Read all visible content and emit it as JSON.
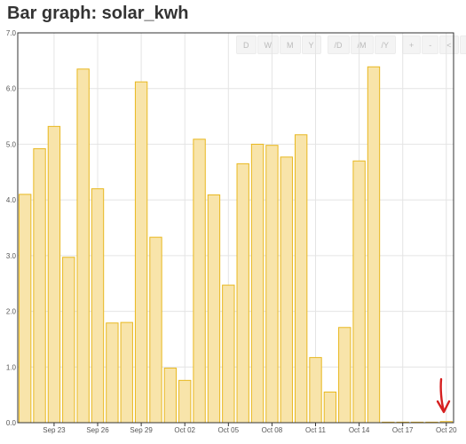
{
  "page": {
    "title": "Bar graph: solar_kwh"
  },
  "toolbar": {
    "buttons": [
      "D",
      "W",
      "M",
      "Y",
      "/D",
      "/M",
      "/Y",
      "+",
      "-",
      "<",
      ">"
    ]
  },
  "annotation": {
    "arrow_color": "#d62020",
    "points_to": "last bar (Oct 20)"
  },
  "colors": {
    "bar_fill": "#f8e4aa",
    "bar_stroke": "#e8b820",
    "grid": "#e4e4e4",
    "axis": "#333333"
  },
  "chart_data": {
    "type": "bar",
    "title": "Bar graph: solar_kwh",
    "xlabel": "",
    "ylabel": "",
    "ylim": [
      0,
      7
    ],
    "yticks": [
      "0.0",
      "1.0",
      "2.0",
      "3.0",
      "4.0",
      "5.0",
      "6.0",
      "7.0"
    ],
    "grid": true,
    "x_tick_labels": [
      {
        "date": "Sep 23",
        "label": "Sep 23"
      },
      {
        "date": "Sep 26",
        "label": "Sep 26"
      },
      {
        "date": "Sep 29",
        "label": "Sep 29"
      },
      {
        "date": "Oct 02",
        "label": "Oct 02"
      },
      {
        "date": "Oct 05",
        "label": "Oct 05"
      },
      {
        "date": "Oct 08",
        "label": "Oct 08"
      },
      {
        "date": "Oct 11",
        "label": "Oct 11"
      },
      {
        "date": "Oct 14",
        "label": "Oct 14"
      },
      {
        "date": "Oct 17",
        "label": "Oct 17"
      },
      {
        "date": "Oct 20",
        "label": "Oct 20"
      }
    ],
    "categories": [
      "Sep 21",
      "Sep 22",
      "Sep 23",
      "Sep 24",
      "Sep 25",
      "Sep 26",
      "Sep 27",
      "Sep 28",
      "Sep 29",
      "Sep 30",
      "Oct 01",
      "Oct 02",
      "Oct 03",
      "Oct 04",
      "Oct 05",
      "Oct 06",
      "Oct 07",
      "Oct 08",
      "Oct 09",
      "Oct 10",
      "Oct 11",
      "Oct 12",
      "Oct 13",
      "Oct 14",
      "Oct 15",
      "Oct 16",
      "Oct 17",
      "Oct 18",
      "Oct 19",
      "Oct 20"
    ],
    "values": [
      4.1,
      4.92,
      5.32,
      2.97,
      6.35,
      4.2,
      1.79,
      1.8,
      6.12,
      3.33,
      0.98,
      0.76,
      5.09,
      4.09,
      2.47,
      4.65,
      5.0,
      4.98,
      4.77,
      5.17,
      1.17,
      0.55,
      1.71,
      4.7,
      6.39,
      0.0,
      0.0,
      0.0,
      0.0,
      0.02
    ]
  }
}
